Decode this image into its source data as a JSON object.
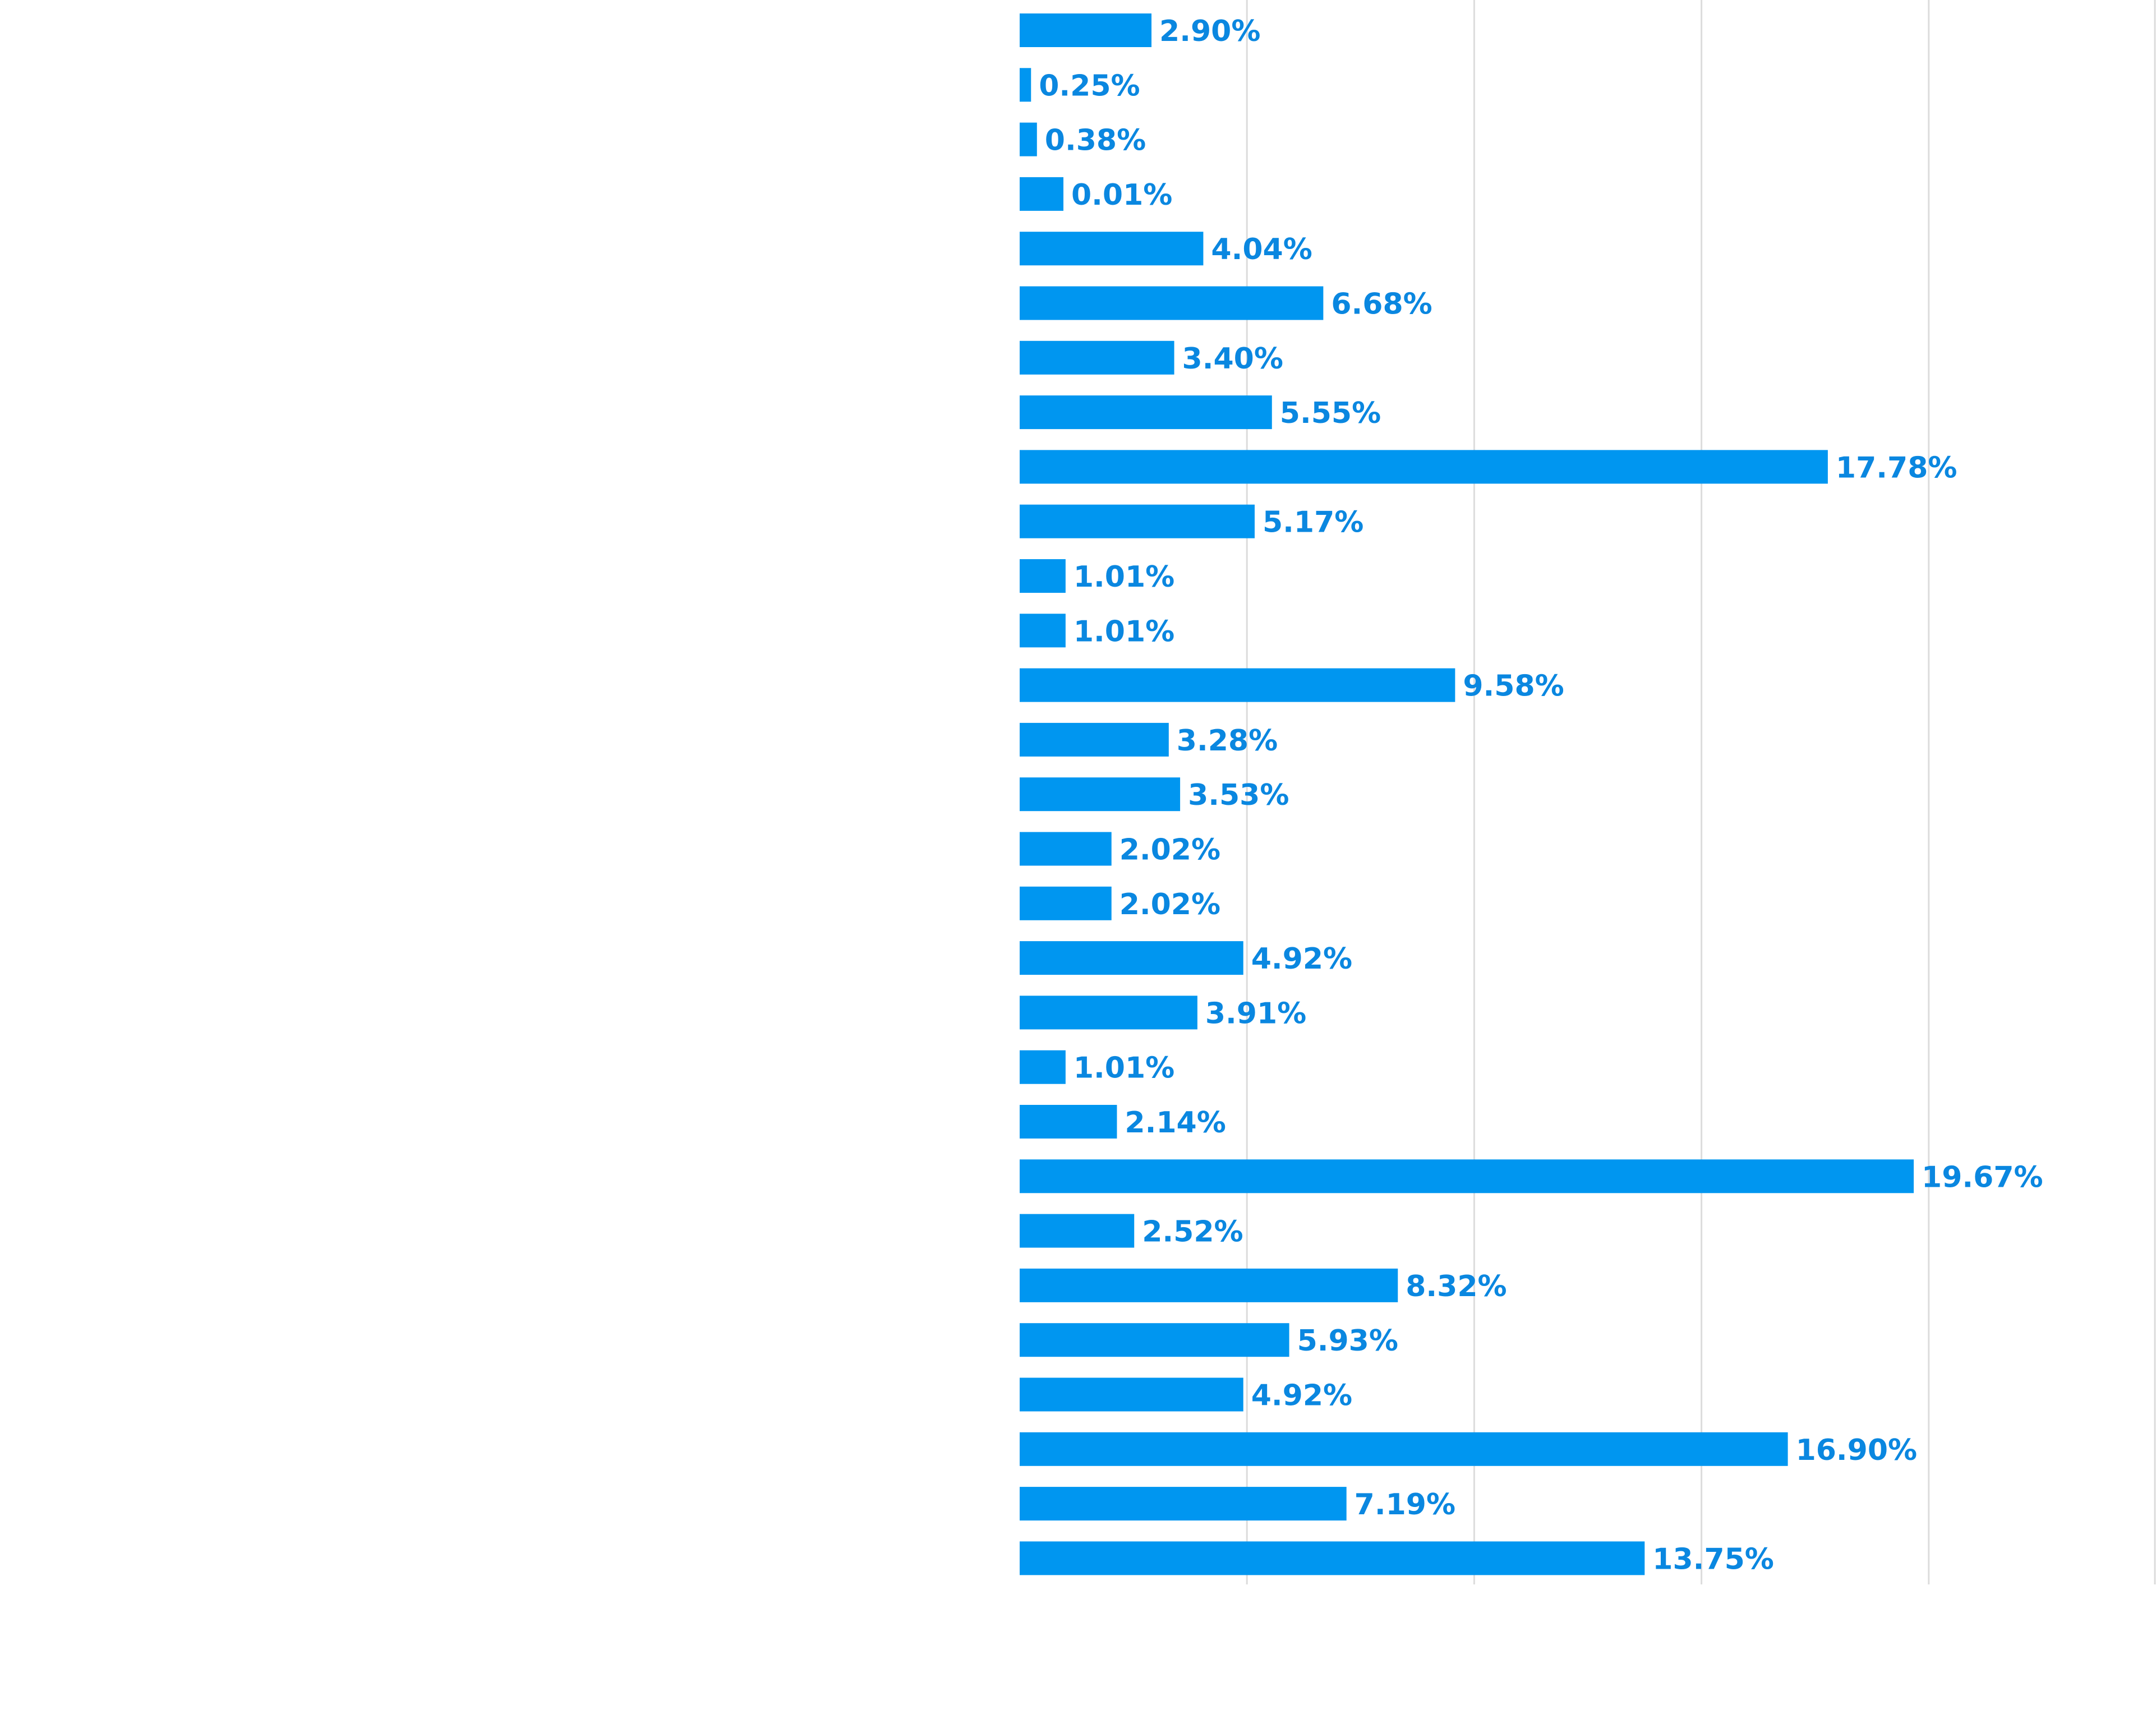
{
  "chart_data": {
    "type": "bar",
    "orientation": "horizontal",
    "title": "",
    "xlabel": "",
    "ylabel": "",
    "xlim": [
      0,
      25
    ],
    "grid": true,
    "gridlines": [
      0,
      5,
      10,
      15,
      20,
      25
    ],
    "bar_color": "#0096f0",
    "label_color": "#0a87e0",
    "grid_color": "#dcdcdc",
    "values": [
      2.9,
      0.25,
      0.38,
      0.01,
      4.04,
      6.68,
      3.4,
      5.55,
      17.78,
      5.17,
      1.01,
      1.01,
      9.58,
      3.28,
      3.53,
      2.02,
      2.02,
      4.92,
      3.91,
      1.01,
      2.14,
      19.67,
      2.52,
      8.32,
      5.93,
      4.92,
      16.9,
      7.19,
      13.75
    ],
    "labels": [
      "2.90%",
      "0.25%",
      "0.38%",
      "0.01%",
      "4.04%",
      "6.68%",
      "3.40%",
      "5.55%",
      "17.78%",
      "5.17%",
      "1.01%",
      "1.01%",
      "9.58%",
      "3.28%",
      "3.53%",
      "2.02%",
      "2.02%",
      "4.92%",
      "3.91%",
      "1.01%",
      "2.14%",
      "19.67%",
      "2.52%",
      "8.32%",
      "5.93%",
      "4.92%",
      "16.90%",
      "7.19%",
      "13.75%"
    ]
  }
}
